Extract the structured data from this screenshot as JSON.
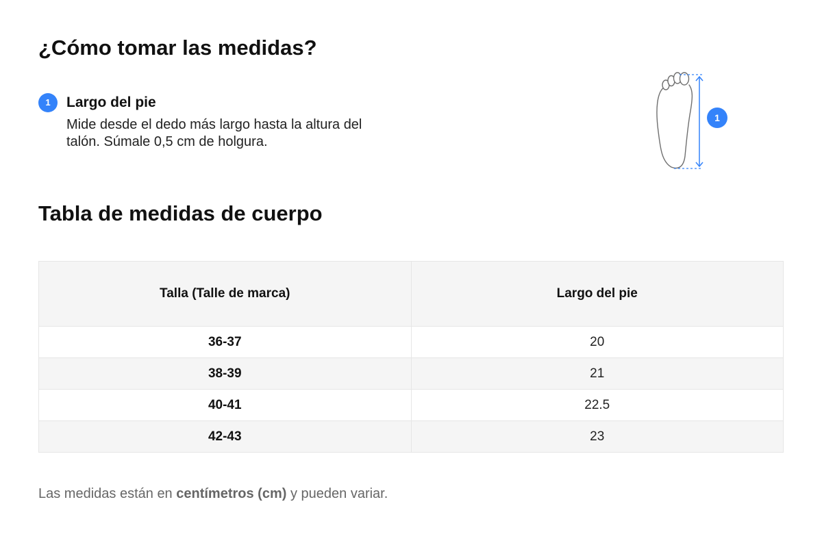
{
  "heading": "¿Cómo tomar las medidas?",
  "step": {
    "number": "1",
    "title": "Largo del pie",
    "description": "Mide desde el dedo más largo hasta la altura del talón. Súmale 0,5 cm de holgura."
  },
  "figure": {
    "badge": "1",
    "icon": "foot-outline-icon",
    "accent_color": "#3483fa"
  },
  "table_title": "Tabla de medidas de cuerpo",
  "table": {
    "headers": [
      "Talla (Talle de marca)",
      "Largo del pie"
    ],
    "rows": [
      {
        "size": "36-37",
        "length": "20"
      },
      {
        "size": "38-39",
        "length": "21"
      },
      {
        "size": "40-41",
        "length": "22.5"
      },
      {
        "size": "42-43",
        "length": "23"
      }
    ]
  },
  "note": {
    "before": "Las medidas están en ",
    "bold": "centímetros (cm)",
    "after": " y pueden variar."
  },
  "colors": {
    "accent": "#3483fa",
    "header_bg": "#f5f5f5",
    "note_text": "#666666"
  }
}
